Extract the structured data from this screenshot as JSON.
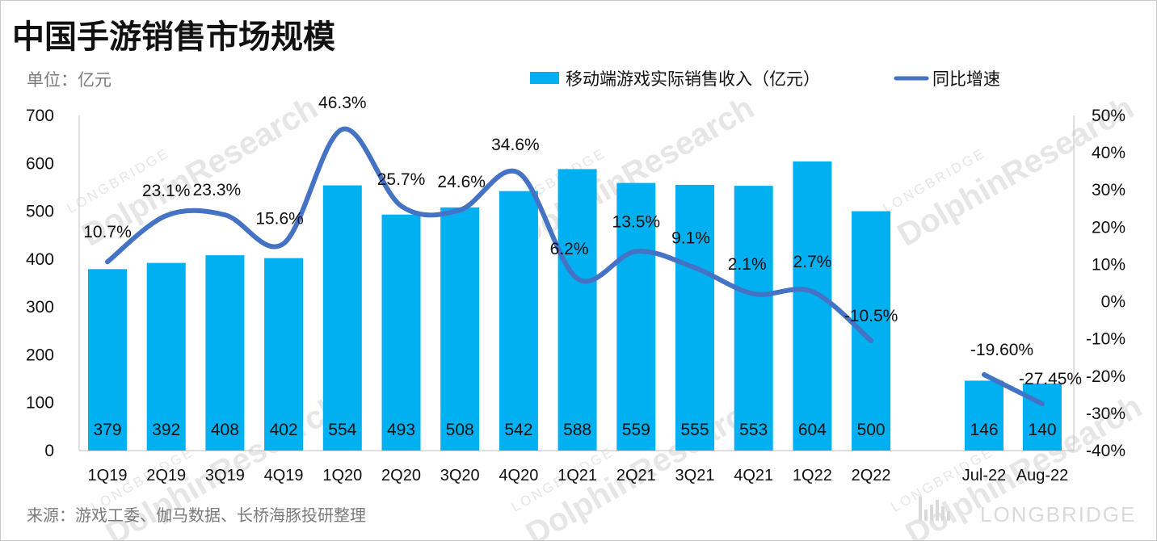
{
  "header": {
    "title": "中国手游销售市场规模",
    "unit": "单位：亿元",
    "source": "来源：游戏工委、伽马数据、长桥海豚投研整理",
    "brand": "LONGBRIDGE"
  },
  "watermark": {
    "text": "DolphinResearch",
    "small": "LONGBRIDGE"
  },
  "colors": {
    "bar": "#00b0f0",
    "line": "#4472c4"
  },
  "chart_data": {
    "type": "bar",
    "categories": [
      "1Q19",
      "2Q19",
      "3Q19",
      "4Q19",
      "1Q20",
      "2Q20",
      "3Q20",
      "4Q20",
      "1Q21",
      "2Q21",
      "3Q21",
      "4Q21",
      "1Q22",
      "2Q22",
      "Jul-22",
      "Aug-22"
    ],
    "series": [
      {
        "name": "移动端游戏实际销售收入（亿元）",
        "type": "bar",
        "axis": "left",
        "values": [
          379,
          392,
          408,
          402,
          554,
          493,
          508,
          542,
          588,
          559,
          555,
          553,
          604,
          500,
          146,
          140
        ]
      },
      {
        "name": "同比增速",
        "type": "line",
        "axis": "right",
        "values": [
          10.7,
          23.1,
          23.3,
          15.6,
          46.3,
          25.7,
          24.6,
          34.6,
          6.2,
          13.5,
          9.1,
          2.1,
          2.7,
          -10.5,
          -19.6,
          -27.45
        ],
        "labels": [
          "10.7%",
          "23.1%",
          "23.3%",
          "15.6%",
          "46.3%",
          "25.7%",
          "24.6%",
          "34.6%",
          "6.2%",
          "13.5%",
          "9.1%",
          "2.1%",
          "2.7%",
          "-10.5%",
          "-19.60%",
          "-27.45%"
        ]
      }
    ],
    "left_axis": {
      "min": 0,
      "max": 700,
      "ticks": [
        "0",
        "100",
        "200",
        "300",
        "400",
        "500",
        "600",
        "700"
      ]
    },
    "right_axis": {
      "min": -40,
      "max": 50,
      "ticks": [
        "-40%",
        "-30%",
        "-20%",
        "-10%",
        "0%",
        "10%",
        "20%",
        "30%",
        "40%",
        "50%"
      ]
    },
    "line_break_after": "2Q22",
    "legend_position": "top-right",
    "grid": false
  }
}
